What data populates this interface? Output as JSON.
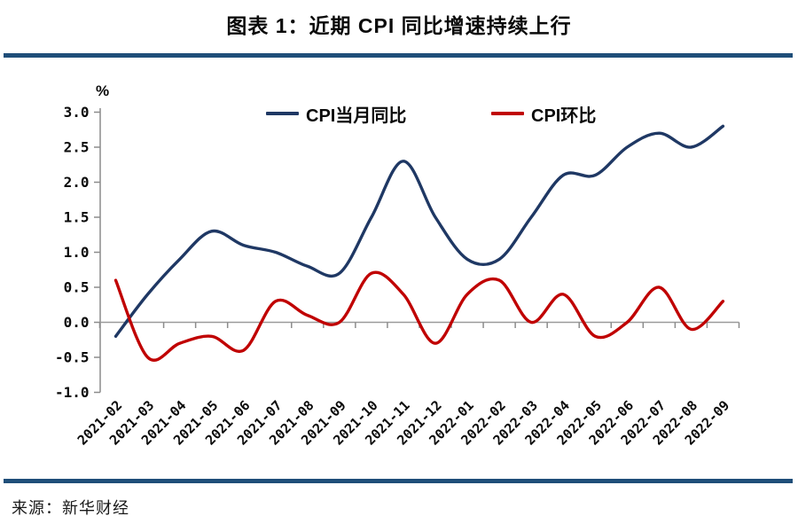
{
  "title": "图表 1：近期 CPI 同比增速持续上行",
  "source": "来源：新华财经",
  "colors": {
    "rule": "#1f4e79",
    "axis": "#8c8c8c",
    "zero_line": "#9a9a9a",
    "series_yoy": "#1f3864",
    "series_mom": "#c00000"
  },
  "chart_data": {
    "type": "line",
    "title": "图表 1：近期 CPI 同比增速持续上行",
    "unit_label": "%",
    "categories": [
      "2021-02",
      "2021-03",
      "2021-04",
      "2021-05",
      "2021-06",
      "2021-07",
      "2021-08",
      "2021-09",
      "2021-10",
      "2021-11",
      "2021-12",
      "2022-01",
      "2022-02",
      "2022-03",
      "2022-04",
      "2022-05",
      "2022-06",
      "2022-07",
      "2022-08",
      "2022-09"
    ],
    "series": [
      {
        "name": "CPI当月同比",
        "color": "#1f3864",
        "values": [
          -0.2,
          0.4,
          0.9,
          1.3,
          1.1,
          1.0,
          0.8,
          0.7,
          1.5,
          2.3,
          1.5,
          0.9,
          0.9,
          1.5,
          2.1,
          2.1,
          2.5,
          2.7,
          2.5,
          2.8
        ]
      },
      {
        "name": "CPI环比",
        "color": "#c00000",
        "values": [
          0.6,
          -0.5,
          -0.3,
          -0.2,
          -0.4,
          0.3,
          0.1,
          0.0,
          0.7,
          0.4,
          -0.3,
          0.4,
          0.6,
          0.0,
          0.4,
          -0.2,
          0.0,
          0.5,
          -0.1,
          0.3
        ]
      }
    ],
    "ylim": [
      -1.0,
      3.0
    ],
    "ytick_step": 0.5,
    "line_style": "smooth",
    "grid": false,
    "legend_position": "top-center",
    "xlabel_rotation": -45
  }
}
